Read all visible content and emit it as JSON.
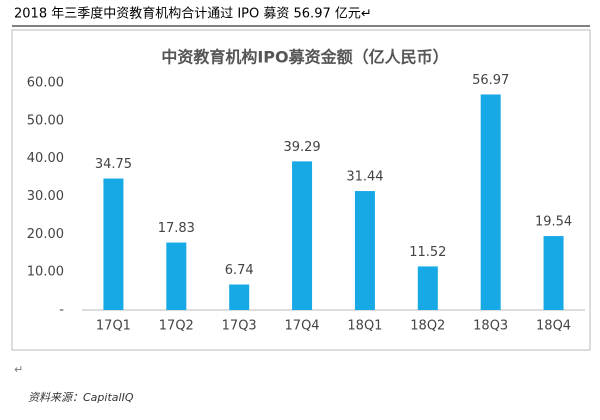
{
  "header": {
    "title": "2018 年三季度中资教育机构合计通过 IPO 募资 56.97 亿元↵"
  },
  "chart_data": {
    "type": "bar",
    "title": "中资教育机构IPO募资金额（亿人民币）",
    "categories": [
      "17Q1",
      "17Q2",
      "17Q3",
      "17Q4",
      "18Q1",
      "18Q2",
      "18Q3",
      "18Q4"
    ],
    "values": [
      34.75,
      17.83,
      6.74,
      39.29,
      31.44,
      11.52,
      56.97,
      19.54
    ],
    "color": "#17a9e6",
    "ylim": [
      0,
      60
    ],
    "yticks": [
      {
        "value": 0,
        "label": "-"
      },
      {
        "value": 10,
        "label": "10.00"
      },
      {
        "value": 20,
        "label": "20.00"
      },
      {
        "value": 30,
        "label": "30.00"
      },
      {
        "value": 40,
        "label": "40.00"
      },
      {
        "value": 50,
        "label": "50.00"
      },
      {
        "value": 60,
        "label": "60.00"
      }
    ],
    "grid": false
  },
  "paragraph_mark": "↵",
  "source": "资料来源：CapitalIQ"
}
